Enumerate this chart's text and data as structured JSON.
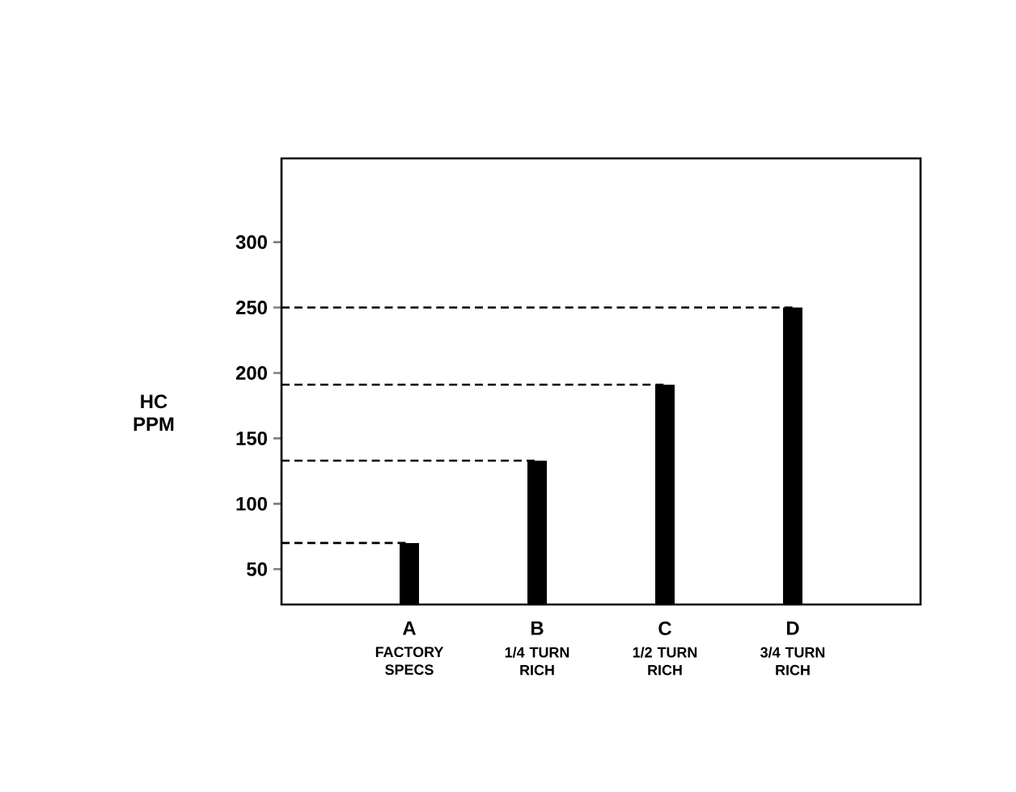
{
  "chart_data": {
    "type": "bar",
    "ylabel": "HC PPM",
    "categories": [
      "A",
      "B",
      "C",
      "D"
    ],
    "values": [
      70,
      133,
      191,
      250
    ],
    "color": "#000000",
    "ylim": [
      23,
      364
    ],
    "yticks": [
      50,
      100,
      150,
      200,
      250,
      300
    ],
    "grid": false,
    "ref_lines": [
      {
        "axis": "y",
        "value": 70,
        "line_style": "dashed"
      },
      {
        "axis": "y",
        "value": 133,
        "line_style": "dashed"
      },
      {
        "axis": "y",
        "value": 191,
        "line_style": "dashed"
      },
      {
        "axis": "y",
        "value": 250,
        "line_style": "dashed"
      }
    ],
    "annotations": [
      "FACTORY SPECS",
      "1/4 TURN RICH",
      "1/2 TURN RICH",
      "3/4 TURN RICH"
    ]
  }
}
